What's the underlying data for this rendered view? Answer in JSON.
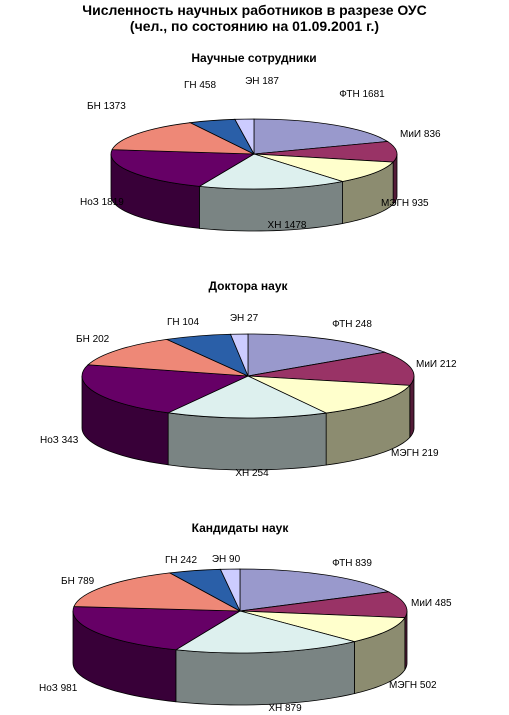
{
  "title_line1": "Численность научных работников в разрезе ОУС",
  "title_line2": "(чел., по состоянию на 01.09.2001 г.)",
  "colors": {
    "ФТН": "#9999cc",
    "МиИ": "#993366",
    "МЭГН": "#ffffcc",
    "ХН": "#ddf0ee",
    "НоЗ": "#660066",
    "БН": "#ee8877",
    "ГН": "#2a5fa8",
    "ЭН": "#ccccff"
  },
  "chart_data": [
    {
      "type": "pie",
      "title": "Научные сотрудники",
      "categories": [
        "ФТН",
        "МиИ",
        "МЭГН",
        "ХН",
        "НоЗ",
        "БН",
        "ГН",
        "ЭН"
      ],
      "values": [
        1681,
        836,
        935,
        1478,
        1819,
        1373,
        458,
        187
      ],
      "labels": [
        "ФТН 1681",
        "МиИ 836",
        "МЭГН 935",
        "ХН 1478",
        "НоЗ 1819",
        "БН 1373",
        "ГН 458",
        "ЭН 187"
      ]
    },
    {
      "type": "pie",
      "title": "Доктора наук",
      "categories": [
        "ФТН",
        "МиИ",
        "МЭГН",
        "ХН",
        "НоЗ",
        "БН",
        "ГН",
        "ЭН"
      ],
      "values": [
        248,
        212,
        219,
        254,
        343,
        202,
        104,
        27
      ],
      "labels": [
        "ФТН 248",
        "МиИ 212",
        "МЭГН 219",
        "ХН 254",
        "НоЗ 343",
        "БН 202",
        "ГН 104",
        "ЭН 27"
      ]
    },
    {
      "type": "pie",
      "title": "Кандидаты наук",
      "categories": [
        "ФТН",
        "МиИ",
        "МЭГН",
        "ХН",
        "НоЗ",
        "БН",
        "ГН",
        "ЭН"
      ],
      "values": [
        839,
        485,
        502,
        879,
        981,
        789,
        242,
        90
      ],
      "labels": [
        "ФТН 839",
        "МиИ 485",
        "МЭГН 502",
        "ХН 879",
        "НоЗ 981",
        "БН 789",
        "ГН 242",
        "ЭН 90"
      ]
    }
  ]
}
